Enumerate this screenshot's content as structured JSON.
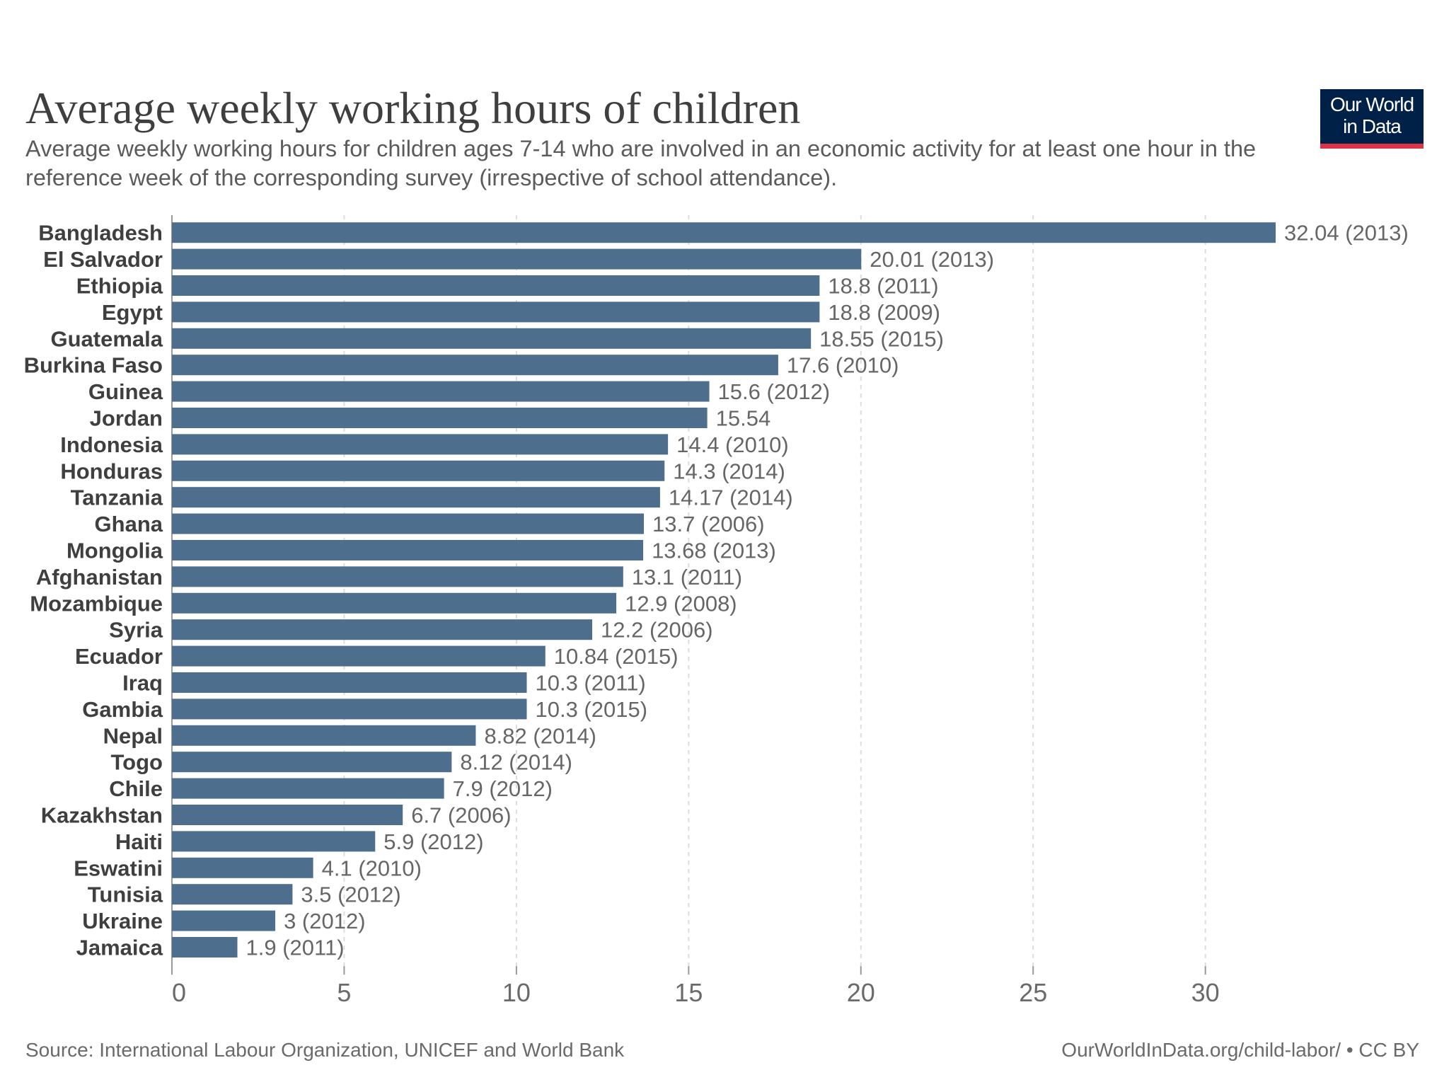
{
  "header": {
    "title": "Average weekly working hours of children",
    "subtitle": "Average weekly working hours for children ages 7-14 who are involved in an economic activity for at least one hour in the reference week of the corresponding survey (irrespective of school attendance).",
    "logo_line1": "Our World",
    "logo_line2": "in Data"
  },
  "footer": {
    "source": "Source: International Labour Organization, UNICEF and World Bank",
    "credit": "OurWorldInData.org/child-labor/ • CC BY"
  },
  "colors": {
    "bar": "#4e6e8e",
    "grid": "#dddddd",
    "label": "#3f3f3f",
    "value_label": "#666666",
    "logo_bg": "#002147",
    "logo_accent": "#dc3545"
  },
  "chart_data": {
    "type": "bar",
    "orientation": "horizontal",
    "categories": [
      "Bangladesh",
      "El Salvador",
      "Ethiopia",
      "Egypt",
      "Guatemala",
      "Burkina Faso",
      "Guinea",
      "Jordan",
      "Indonesia",
      "Honduras",
      "Tanzania",
      "Ghana",
      "Mongolia",
      "Afghanistan",
      "Mozambique",
      "Syria",
      "Ecuador",
      "Iraq",
      "Gambia",
      "Nepal",
      "Togo",
      "Chile",
      "Kazakhstan",
      "Haiti",
      "Eswatini",
      "Tunisia",
      "Ukraine",
      "Jamaica"
    ],
    "values": [
      32.04,
      20.01,
      18.8,
      18.8,
      18.55,
      17.6,
      15.6,
      15.54,
      14.4,
      14.3,
      14.17,
      13.7,
      13.68,
      13.1,
      12.9,
      12.2,
      10.84,
      10.3,
      10.3,
      8.82,
      8.12,
      7.9,
      6.7,
      5.9,
      4.1,
      3.5,
      3,
      1.9
    ],
    "value_labels": [
      "32.04 (2013)",
      "20.01 (2013)",
      "18.8 (2011)",
      "18.8 (2009)",
      "18.55 (2015)",
      "17.6 (2010)",
      "15.6 (2012)",
      "15.54",
      "14.4 (2010)",
      "14.3 (2014)",
      "14.17 (2014)",
      "13.7 (2006)",
      "13.68 (2013)",
      "13.1 (2011)",
      "12.9 (2008)",
      "12.2 (2006)",
      "10.84 (2015)",
      "10.3 (2011)",
      "10.3 (2015)",
      "8.82 (2014)",
      "8.12 (2014)",
      "7.9 (2012)",
      "6.7 (2006)",
      "5.9 (2012)",
      "4.1 (2010)",
      "3.5 (2012)",
      "3 (2012)",
      "1.9 (2011)"
    ],
    "xticks": [
      0,
      5,
      10,
      15,
      20,
      25,
      30
    ],
    "xlim": [
      0,
      32.04
    ],
    "grid": true,
    "xlabel": "",
    "ylabel": ""
  }
}
